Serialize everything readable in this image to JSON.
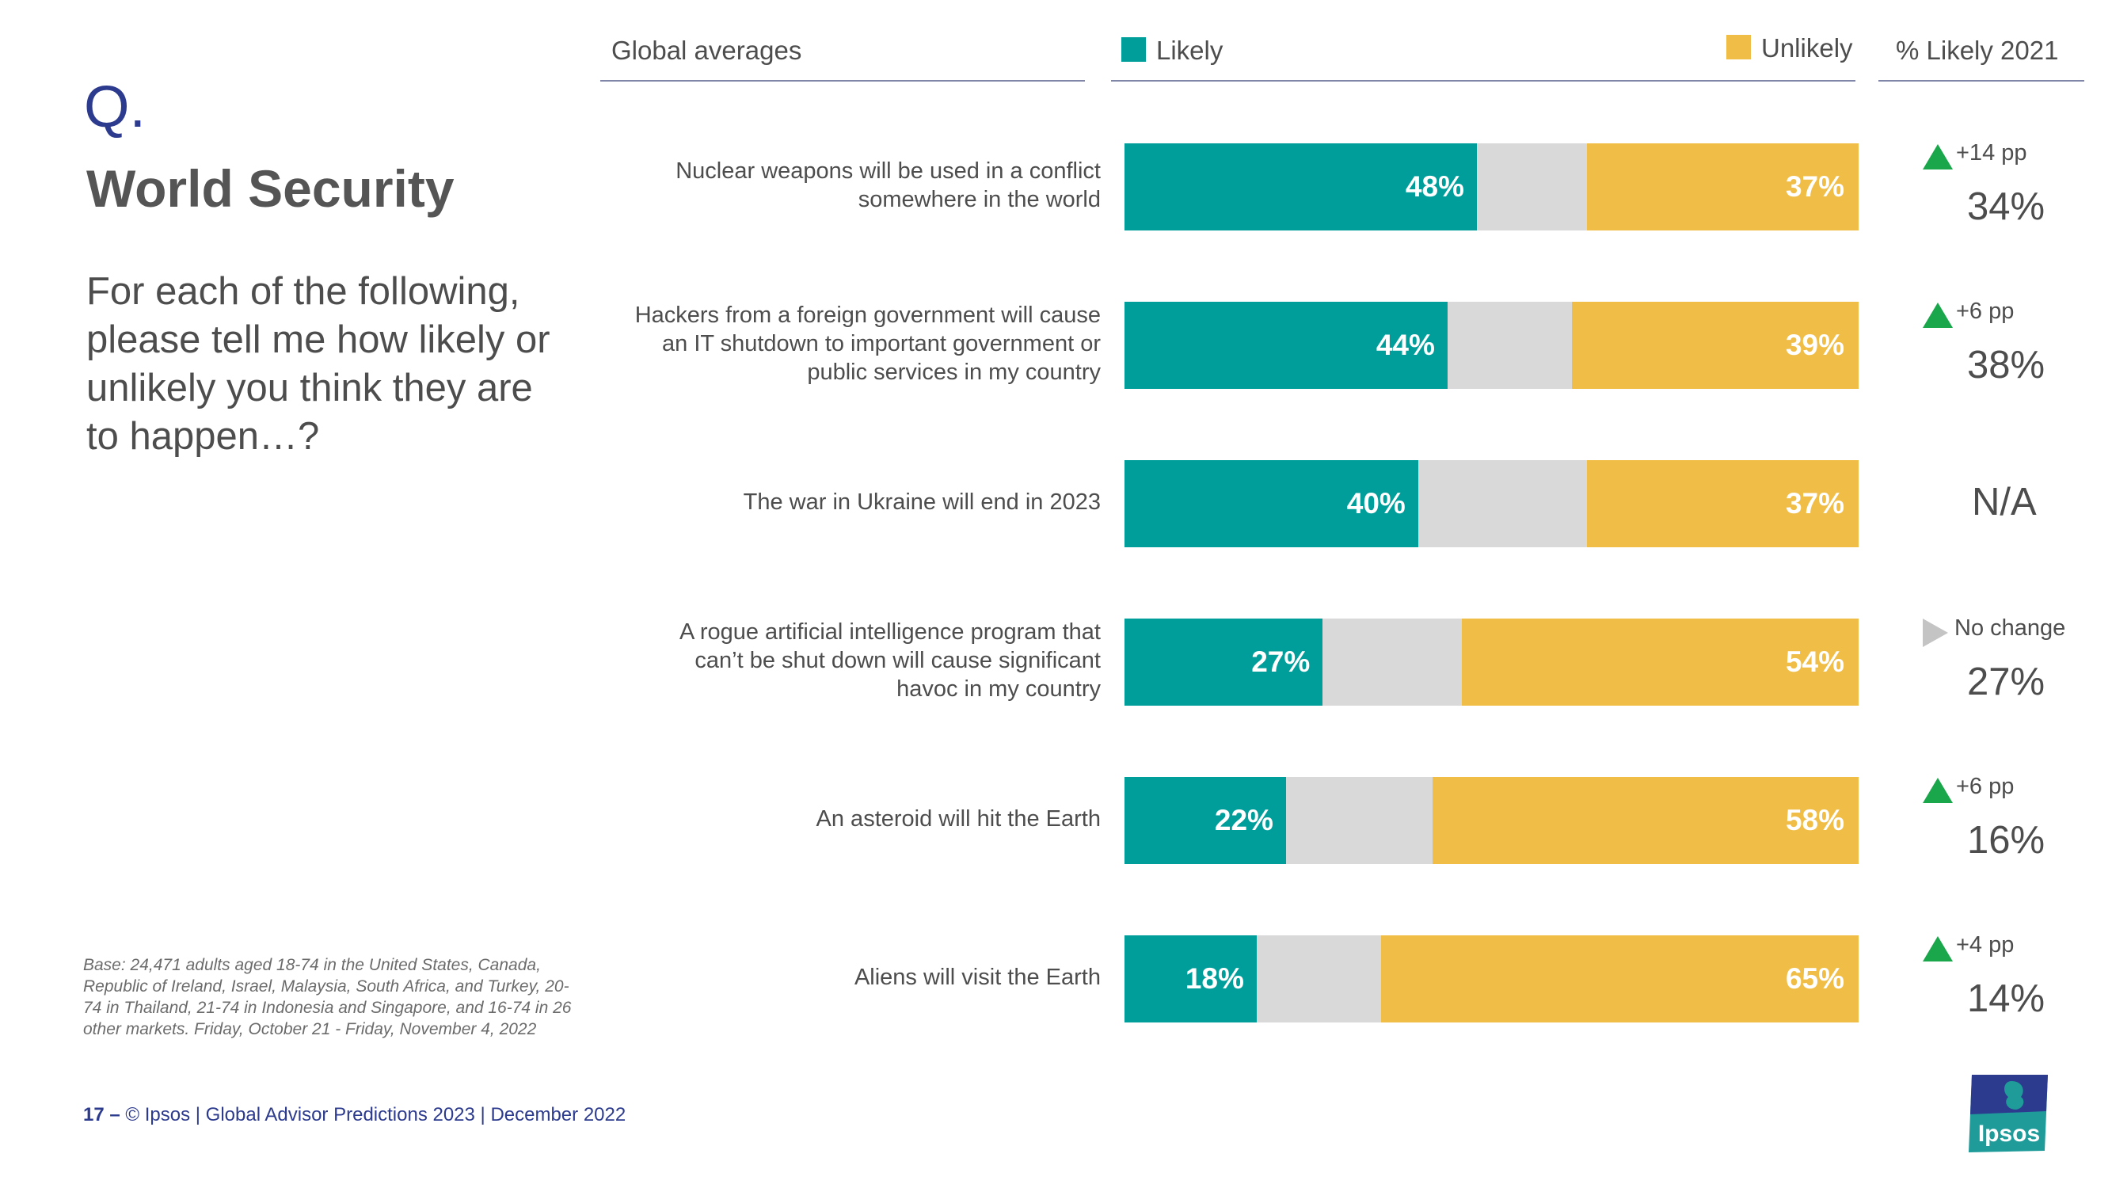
{
  "header": {
    "q_mark": "Q.",
    "title": "World Security",
    "question": "For each of the following, please tell me how likely or unlikely you think they are to happen…?"
  },
  "columns": {
    "global": "Global averages",
    "likely": "Likely",
    "unlikely": "Unlikely",
    "likely_2021": "% Likely 2021"
  },
  "colors": {
    "likely": "#009e9a",
    "neutral": "#d9d9d9",
    "unlikely": "#f0bd47",
    "up_arrow": "#1aa64a",
    "no_change_arrow": "#c4c4c4",
    "brand_blue": "#2d3b8e"
  },
  "chart_data": {
    "type": "bar",
    "orientation": "horizontal",
    "stacked": true,
    "categories": [
      "Nuclear weapons will be used in a conflict somewhere in the world",
      "Hackers from a foreign government will cause an IT shutdown to important government or public services in my country",
      "The war in Ukraine will end in 2023",
      "A rogue artificial intelligence program that can’t be shut down will cause significant havoc in my country",
      "An asteroid will hit the Earth",
      "Aliens will visit the Earth"
    ],
    "series": [
      {
        "name": "Likely",
        "values": [
          48,
          44,
          40,
          27,
          22,
          18
        ]
      },
      {
        "name": "Unlikely",
        "values": [
          37,
          39,
          37,
          54,
          58,
          65
        ]
      }
    ],
    "likely_labels": [
      "48%",
      "44%",
      "40%",
      "27%",
      "22%",
      "18%"
    ],
    "unlikely_labels": [
      "37%",
      "39%",
      "37%",
      "54%",
      "58%",
      "65%"
    ],
    "xlim": [
      0,
      100
    ],
    "likely_2021": {
      "values": [
        "34%",
        "38%",
        "N/A",
        "27%",
        "16%",
        "14%"
      ],
      "changes": [
        "+14 pp",
        "+6 pp",
        "",
        "No change",
        "+6 pp",
        "+4 pp"
      ],
      "arrows": [
        "up",
        "up",
        "none",
        "right",
        "up",
        "up"
      ]
    }
  },
  "statement_lines": [
    [
      "Nuclear weapons will be used in a conflict",
      "somewhere in the world"
    ],
    [
      "Hackers from a foreign government will cause",
      "an IT shutdown to important government or",
      "public services in my country"
    ],
    [
      "The war in Ukraine will end in 2023"
    ],
    [
      "A rogue artificial intelligence program that",
      "can’t be shut down will cause significant",
      "havoc in my country"
    ],
    [
      "An asteroid will hit the Earth"
    ],
    [
      "Aliens will visit the Earth"
    ]
  ],
  "base_note": "Base: 24,471 adults aged 18-74 in the United States, Canada, Republic of Ireland, Israel, Malaysia, South Africa, and Turkey, 20-74 in Thailand, 21-74 in Indonesia and Singapore, and 16-74 in 26 other markets. Friday, October 21 -  Friday, November 4, 2022",
  "footer": {
    "page": "17 –",
    "text": "© Ipsos | Global Advisor Predictions 2023 | December 2022"
  },
  "logo": {
    "text": "Ipsos"
  }
}
